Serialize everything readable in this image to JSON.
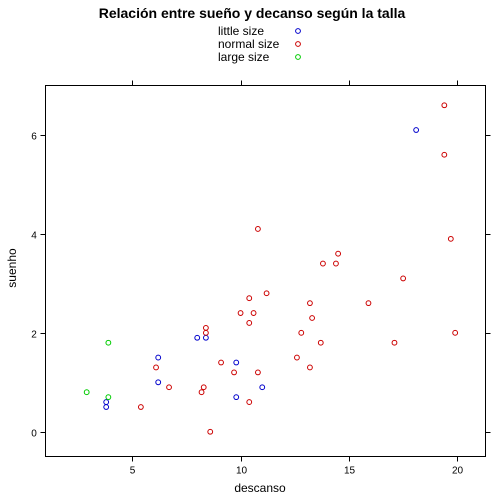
{
  "chart_data": {
    "type": "scatter",
    "title": "Relación entre sueño y decanso según la talla",
    "xlabel": "descanso",
    "ylabel": "suenho",
    "xlim": [
      1.0,
      21.3
    ],
    "ylim": [
      -0.5,
      7.0
    ],
    "xticks": [
      5,
      10,
      15,
      20
    ],
    "yticks": [
      0,
      2,
      4,
      6
    ],
    "grid": false,
    "legend_position": "top-center",
    "series": [
      {
        "name": "little size",
        "color": "#0000cc",
        "points": [
          [
            18.1,
            6.1
          ],
          [
            8.0,
            1.9
          ],
          [
            8.4,
            1.9
          ],
          [
            6.2,
            1.5
          ],
          [
            9.8,
            1.4
          ],
          [
            6.2,
            1.0
          ],
          [
            11.0,
            0.9
          ],
          [
            9.8,
            0.7
          ],
          [
            3.8,
            0.6
          ],
          [
            3.8,
            0.5
          ]
        ]
      },
      {
        "name": "normal size",
        "color": "#cc0000",
        "points": [
          [
            19.4,
            6.6
          ],
          [
            19.4,
            5.6
          ],
          [
            10.8,
            4.1
          ],
          [
            19.7,
            3.9
          ],
          [
            14.5,
            3.6
          ],
          [
            13.8,
            3.4
          ],
          [
            14.4,
            3.4
          ],
          [
            17.5,
            3.1
          ],
          [
            11.2,
            2.8
          ],
          [
            10.4,
            2.7
          ],
          [
            13.2,
            2.6
          ],
          [
            15.9,
            2.6
          ],
          [
            10.0,
            2.4
          ],
          [
            10.6,
            2.4
          ],
          [
            13.3,
            2.3
          ],
          [
            10.4,
            2.2
          ],
          [
            8.4,
            2.1
          ],
          [
            19.9,
            2.0
          ],
          [
            8.4,
            2.0
          ],
          [
            12.8,
            2.0
          ],
          [
            13.7,
            1.8
          ],
          [
            17.1,
            1.8
          ],
          [
            12.6,
            1.5
          ],
          [
            9.1,
            1.4
          ],
          [
            6.1,
            1.3
          ],
          [
            13.2,
            1.3
          ],
          [
            9.7,
            1.2
          ],
          [
            10.8,
            1.2
          ],
          [
            6.7,
            0.9
          ],
          [
            8.3,
            0.9
          ],
          [
            8.2,
            0.8
          ],
          [
            10.4,
            0.6
          ],
          [
            5.4,
            0.5
          ],
          [
            8.6,
            0.0
          ]
        ]
      },
      {
        "name": "large size",
        "color": "#00cc00",
        "points": [
          [
            3.9,
            1.8
          ],
          [
            2.9,
            0.8
          ],
          [
            3.9,
            0.7
          ]
        ]
      }
    ]
  }
}
